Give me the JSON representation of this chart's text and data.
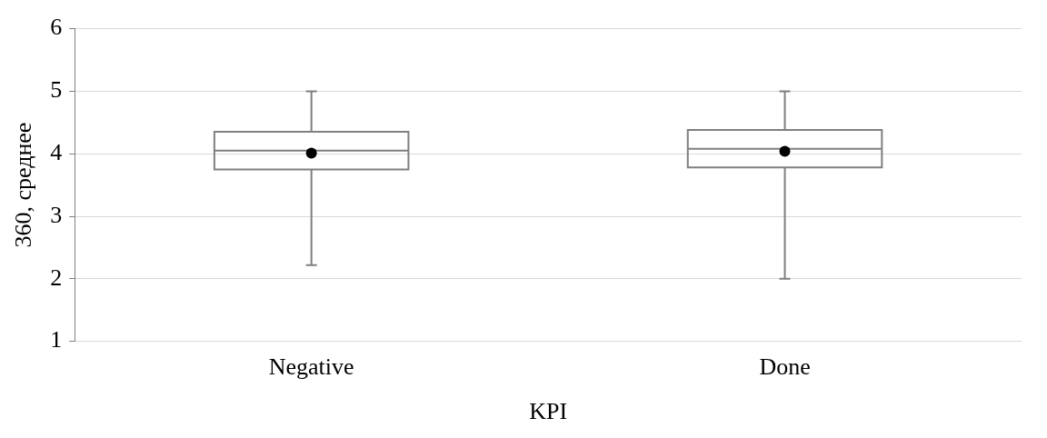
{
  "chart_data": {
    "type": "box",
    "xlabel": "KPI",
    "ylabel": "360, среднее",
    "categories": [
      "Negative",
      "Done"
    ],
    "boxes": [
      {
        "low": 2.22,
        "q1": 3.75,
        "median": 4.05,
        "q3": 4.35,
        "high": 5,
        "mean": 4.01
      },
      {
        "low": 2,
        "q1": 3.78,
        "median": 4.08,
        "q3": 4.38,
        "high": 5,
        "mean": 4.04
      }
    ],
    "color": "#7f7f7f",
    "ylim": [
      1,
      6
    ],
    "yticks": [
      1,
      2,
      3,
      4,
      5,
      6
    ],
    "grid": "y",
    "legend": false,
    "marker": "circle"
  }
}
